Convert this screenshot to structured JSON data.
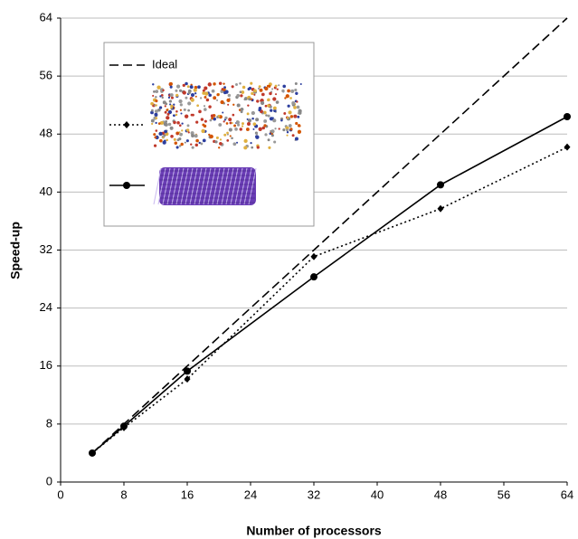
{
  "chart_data": {
    "type": "line",
    "xlabel": "Number of processors",
    "ylabel": "Speed-up",
    "x": [
      4,
      8,
      16,
      32,
      48,
      64
    ],
    "series": [
      {
        "name": "Ideal",
        "color": "#000000",
        "linestyle": "dashed",
        "marker": "none",
        "values": [
          4,
          8,
          16,
          32,
          48,
          64
        ]
      },
      {
        "color": "#000000",
        "linestyle": "dotted",
        "marker": "diamond",
        "values": [
          4.0,
          7.5,
          14.2,
          31.1,
          37.7,
          46.2
        ]
      },
      {
        "color": "#000000",
        "linestyle": "solid",
        "marker": "circle",
        "values": [
          4.0,
          7.7,
          15.3,
          28.3,
          41.0,
          50.4
        ]
      }
    ],
    "xlim": [
      0,
      64
    ],
    "xticks": [
      0,
      8,
      16,
      24,
      32,
      40,
      48,
      56,
      64
    ],
    "ylim": [
      0,
      64
    ],
    "yticks": [
      0,
      8,
      16,
      24,
      32,
      40,
      48,
      56,
      64
    ],
    "grid": true,
    "legend": "upper left"
  }
}
